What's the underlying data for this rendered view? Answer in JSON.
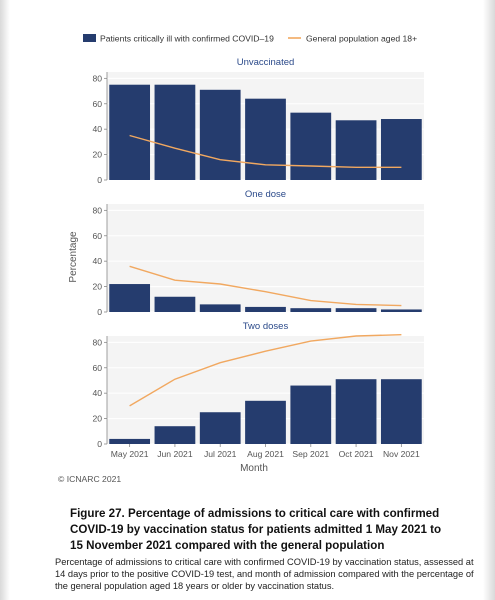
{
  "chart_data": {
    "type": "bar",
    "categories": [
      "May 2021",
      "Jun 2021",
      "Jul 2021",
      "Aug 2021",
      "Sep 2021",
      "Oct 2021",
      "Nov 2021"
    ],
    "legend": {
      "bar_label": "Patients critically ill with confirmed COVID–19",
      "line_label": "General population aged 18+",
      "placement": "top"
    },
    "ylabel": "Percentage",
    "xlabel": "Month",
    "ylim": [
      0,
      85
    ],
    "yticks": [
      0,
      20,
      40,
      60,
      80
    ],
    "bar_color": "#253c6e",
    "line_color": "#f1a860",
    "panel_bg": "#f4f4f4",
    "grid": true,
    "panels": [
      {
        "title": "Unvaccinated",
        "bars": [
          75,
          75,
          71,
          64,
          53,
          47,
          48
        ],
        "line": [
          35,
          25,
          16,
          12,
          11,
          10,
          10
        ]
      },
      {
        "title": "One dose",
        "bars": [
          22,
          12,
          6,
          4,
          3,
          3,
          2
        ],
        "line": [
          36,
          25,
          22,
          16,
          9,
          6,
          5
        ]
      },
      {
        "title": "Two doses",
        "bars": [
          4,
          14,
          25,
          34,
          46,
          51,
          51
        ],
        "line": [
          30,
          51,
          64,
          73,
          81,
          85,
          86
        ]
      }
    ]
  },
  "copyright": "© ICNARC 2021",
  "caption": {
    "number": "Figure 27.",
    "text": "Percentage of admissions to critical care with confirmed COVID-19 by vaccination status for patients admitted 1 May 2021 to 15 November 2021 compared with the general population"
  },
  "description": "Percentage of admissions to critical care with confirmed COVID-19 by vaccination status, assessed at 14 days prior to the positive COVID-19 test, and month of admission compared with the percentage of the general population aged 18 years or older by vaccination status."
}
